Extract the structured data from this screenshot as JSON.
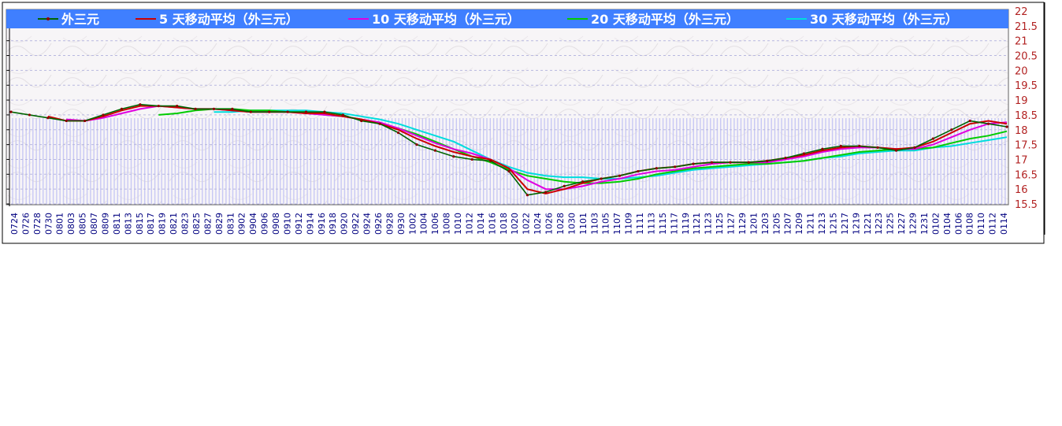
{
  "chart_data": {
    "type": "line",
    "title": "",
    "xlabel": "",
    "ylabel": "",
    "ylim": [
      15.5,
      22
    ],
    "y_ticks": [
      "22",
      "21.5",
      "21",
      "20.5",
      "20",
      "19.5",
      "19",
      "18.5",
      "18",
      "17.5",
      "17",
      "16.5",
      "16",
      "15.5"
    ],
    "y_tick_values": [
      22,
      21.5,
      21,
      20.5,
      20,
      19.5,
      19,
      18.5,
      18,
      17.5,
      17,
      16.5,
      16,
      15.5
    ],
    "x_tick_labels": [
      "0724",
      "0726",
      "0728",
      "0730",
      "0801",
      "0803",
      "0805",
      "0807",
      "0809",
      "0811",
      "0813",
      "0815",
      "0817",
      "0819",
      "0821",
      "0823",
      "0825",
      "0827",
      "0829",
      "0831",
      "0902",
      "0904",
      "0906",
      "0908",
      "0910",
      "0912",
      "0914",
      "0916",
      "0918",
      "0920",
      "0922",
      "0924",
      "0926",
      "0928",
      "0930",
      "1002",
      "1004",
      "1006",
      "1008",
      "1010",
      "1012",
      "1014",
      "1016",
      "1018",
      "1020",
      "1022",
      "1024",
      "1026",
      "1028",
      "1030",
      "1101",
      "1103",
      "1105",
      "1107",
      "1109",
      "1111",
      "1113",
      "1115",
      "1117",
      "1119",
      "1121",
      "1123",
      "1125",
      "1127",
      "1129",
      "1201",
      "1203",
      "1205",
      "1207",
      "1209",
      "1211",
      "1213",
      "1215",
      "1217",
      "1219",
      "1221",
      "1223",
      "1225",
      "1227",
      "1229",
      "1231",
      "0102",
      "0104",
      "0106",
      "0108",
      "0110",
      "0112",
      "0114"
    ],
    "legend_position": "top",
    "grid": true,
    "series": [
      {
        "name": "外三元",
        "color": "#006400",
        "marker_color": "#8b0000",
        "values": [
          18.6,
          18.5,
          18.4,
          18.3,
          18.3,
          18.5,
          18.7,
          18.85,
          18.8,
          18.8,
          18.7,
          18.7,
          18.7,
          18.6,
          18.6,
          18.6,
          18.6,
          18.6,
          18.5,
          18.3,
          18.2,
          17.9,
          17.5,
          17.3,
          17.1,
          17.0,
          16.95,
          16.6,
          15.8,
          15.9,
          16.1,
          16.25,
          16.35,
          16.45,
          16.6,
          16.7,
          16.75,
          16.85,
          16.9,
          16.9,
          16.9,
          16.95,
          17.05,
          17.2,
          17.35,
          17.45,
          17.45,
          17.4,
          17.3,
          17.4,
          17.7,
          18.0,
          18.3,
          18.2,
          18.1
        ]
      },
      {
        "name": "5 天移动平均（外三元）",
        "color": "#cc0000",
        "values": [
          null,
          null,
          18.45,
          18.3,
          18.3,
          18.45,
          18.65,
          18.8,
          18.8,
          18.75,
          18.7,
          18.7,
          18.65,
          18.6,
          18.6,
          18.6,
          18.55,
          18.55,
          18.45,
          18.35,
          18.2,
          18.0,
          17.7,
          17.45,
          17.25,
          17.1,
          17.0,
          16.7,
          16.0,
          15.85,
          16.0,
          16.2,
          16.35,
          16.45,
          16.6,
          16.7,
          16.75,
          16.85,
          16.9,
          16.9,
          16.9,
          16.95,
          17.05,
          17.15,
          17.3,
          17.4,
          17.45,
          17.4,
          17.35,
          17.4,
          17.6,
          17.9,
          18.2,
          18.3,
          18.2
        ]
      },
      {
        "name": "10 天移动平均（外三元）",
        "color": "#e000e0",
        "values": [
          null,
          null,
          null,
          18.35,
          18.3,
          18.4,
          18.55,
          18.7,
          18.8,
          18.75,
          18.7,
          18.7,
          18.65,
          18.6,
          18.6,
          18.6,
          18.55,
          18.5,
          18.45,
          18.35,
          18.25,
          18.05,
          17.8,
          17.55,
          17.35,
          17.2,
          17.0,
          16.7,
          16.3,
          16.0,
          16.0,
          16.1,
          16.25,
          16.35,
          16.5,
          16.6,
          16.65,
          16.75,
          16.85,
          16.9,
          16.9,
          16.9,
          17.0,
          17.1,
          17.25,
          17.35,
          17.4,
          17.4,
          17.35,
          17.35,
          17.5,
          17.75,
          18.0,
          18.2,
          18.25
        ]
      },
      {
        "name": "20 天移动平均（外三元）",
        "color": "#00cc00",
        "values": [
          null,
          null,
          null,
          null,
          null,
          null,
          null,
          null,
          18.5,
          18.55,
          18.65,
          18.7,
          18.7,
          18.65,
          18.65,
          18.6,
          18.6,
          18.5,
          18.45,
          18.35,
          18.2,
          18.05,
          17.85,
          17.6,
          17.35,
          17.1,
          16.9,
          16.65,
          16.45,
          16.35,
          16.25,
          16.2,
          16.2,
          16.25,
          16.35,
          16.5,
          16.6,
          16.7,
          16.75,
          16.8,
          16.85,
          16.85,
          16.9,
          16.95,
          17.05,
          17.15,
          17.25,
          17.3,
          17.35,
          17.35,
          17.4,
          17.55,
          17.7,
          17.8,
          17.95
        ]
      },
      {
        "name": "30 天移动平均（外三元）",
        "color": "#00dddd",
        "values": [
          null,
          null,
          null,
          null,
          null,
          null,
          null,
          null,
          null,
          null,
          null,
          18.6,
          18.6,
          18.65,
          18.65,
          18.65,
          18.65,
          18.6,
          18.55,
          18.45,
          18.35,
          18.2,
          18.0,
          17.8,
          17.6,
          17.3,
          17.0,
          16.75,
          16.55,
          16.45,
          16.4,
          16.4,
          16.35,
          16.35,
          16.4,
          16.45,
          16.55,
          16.65,
          16.7,
          16.75,
          16.8,
          16.85,
          16.9,
          16.95,
          17.05,
          17.1,
          17.2,
          17.25,
          17.3,
          17.3,
          17.4,
          17.45,
          17.55,
          17.65,
          17.75
        ]
      }
    ]
  }
}
